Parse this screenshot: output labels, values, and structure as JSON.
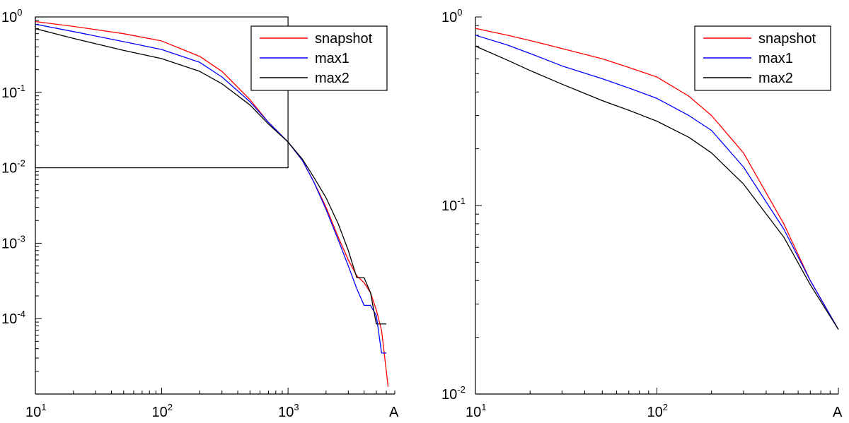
{
  "chart_data": [
    {
      "type": "line",
      "x_scale": "log",
      "y_scale": "log",
      "xlabel": "A",
      "ylabel": "",
      "xlim": [
        10,
        7000
      ],
      "ylim": [
        1e-05,
        1
      ],
      "x_ticks": [
        {
          "base": "10",
          "exp": "1"
        },
        {
          "base": "10",
          "exp": "2"
        },
        {
          "base": "10",
          "exp": "3"
        }
      ],
      "y_ticks": [
        {
          "base": "10",
          "exp": "0"
        },
        {
          "base": "10",
          "exp": "-1"
        },
        {
          "base": "10",
          "exp": "-2"
        },
        {
          "base": "10",
          "exp": "-3"
        },
        {
          "base": "10",
          "exp": "-4"
        }
      ],
      "legend": [
        "snapshot",
        "max1",
        "max2"
      ],
      "legend_position": "top-right",
      "zoom_box": {
        "x": [
          10,
          1000
        ],
        "y": [
          0.01,
          1
        ]
      },
      "series": [
        {
          "name": "snapshot",
          "color": "#ff0000",
          "x": [
            10,
            20,
            50,
            100,
            200,
            300,
            500,
            700,
            1000,
            1300,
            1600,
            2000,
            2500,
            3000,
            3500,
            4000,
            4500,
            5000,
            5500,
            6000,
            6200
          ],
          "y": [
            0.87,
            0.75,
            0.6,
            0.48,
            0.3,
            0.19,
            0.08,
            0.04,
            0.022,
            0.0125,
            0.0065,
            0.003,
            0.0012,
            0.0006,
            0.00037,
            0.0003,
            0.00022,
            0.00013,
            7e-05,
            2e-05,
            1.25e-05
          ]
        },
        {
          "name": "max1",
          "color": "#0000ff",
          "x": [
            10,
            20,
            50,
            100,
            200,
            300,
            500,
            700,
            1000,
            1300,
            1600,
            2000,
            2500,
            3000,
            3500,
            4000,
            4500,
            5000,
            5500,
            6000
          ],
          "y": [
            0.8,
            0.64,
            0.47,
            0.37,
            0.25,
            0.16,
            0.075,
            0.04,
            0.022,
            0.0125,
            0.0065,
            0.0028,
            0.0011,
            0.0005,
            0.00025,
            0.00015,
            0.00015,
            0.00011,
            3.5e-05,
            3.5e-05
          ]
        },
        {
          "name": "max2",
          "color": "#000000",
          "x": [
            10,
            20,
            50,
            100,
            200,
            300,
            500,
            700,
            1000,
            1300,
            1600,
            2000,
            2500,
            3000,
            3500,
            4000,
            4500,
            5000,
            5500,
            6000
          ],
          "y": [
            0.7,
            0.52,
            0.36,
            0.28,
            0.19,
            0.13,
            0.068,
            0.038,
            0.022,
            0.013,
            0.0075,
            0.004,
            0.0018,
            0.0008,
            0.00035,
            0.00035,
            0.00022,
            8.5e-05,
            8.5e-05,
            8.5e-05
          ]
        }
      ]
    },
    {
      "type": "line",
      "x_scale": "log",
      "y_scale": "log",
      "xlabel": "A",
      "ylabel": "",
      "xlim": [
        10,
        1000
      ],
      "ylim": [
        0.01,
        1
      ],
      "x_ticks": [
        {
          "base": "10",
          "exp": "1"
        },
        {
          "base": "10",
          "exp": "2"
        }
      ],
      "y_ticks": [
        {
          "base": "10",
          "exp": "0"
        },
        {
          "base": "10",
          "exp": "-1"
        },
        {
          "base": "10",
          "exp": "-2"
        }
      ],
      "legend": [
        "snapshot",
        "max1",
        "max2"
      ],
      "legend_position": "top-right",
      "series": [
        {
          "name": "snapshot",
          "color": "#ff0000",
          "x": [
            10,
            15,
            20,
            30,
            50,
            70,
            100,
            150,
            200,
            300,
            500,
            700,
            1000
          ],
          "y": [
            0.87,
            0.8,
            0.75,
            0.68,
            0.6,
            0.54,
            0.48,
            0.38,
            0.3,
            0.19,
            0.08,
            0.04,
            0.022
          ]
        },
        {
          "name": "max1",
          "color": "#0000ff",
          "x": [
            10,
            15,
            20,
            30,
            50,
            70,
            100,
            150,
            200,
            300,
            500,
            700,
            1000
          ],
          "y": [
            0.8,
            0.71,
            0.64,
            0.55,
            0.47,
            0.42,
            0.37,
            0.3,
            0.25,
            0.16,
            0.075,
            0.04,
            0.022
          ]
        },
        {
          "name": "max2",
          "color": "#000000",
          "x": [
            10,
            15,
            20,
            30,
            50,
            70,
            100,
            150,
            200,
            300,
            500,
            700,
            1000
          ],
          "y": [
            0.7,
            0.59,
            0.52,
            0.44,
            0.36,
            0.32,
            0.28,
            0.23,
            0.19,
            0.13,
            0.068,
            0.038,
            0.022
          ]
        }
      ]
    }
  ]
}
